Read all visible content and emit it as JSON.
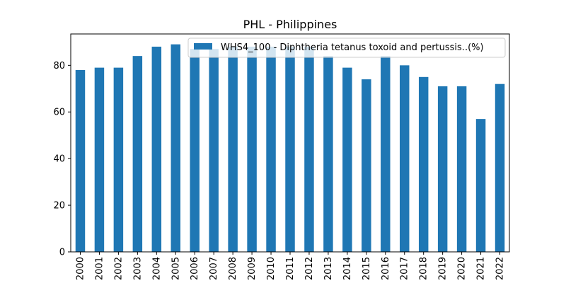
{
  "chart_data": {
    "type": "bar",
    "title": "PHL - Philippines",
    "xlabel": "",
    "ylabel": "",
    "categories": [
      "2000",
      "2001",
      "2002",
      "2003",
      "2004",
      "2005",
      "2006",
      "2007",
      "2008",
      "2009",
      "2010",
      "2011",
      "2012",
      "2013",
      "2014",
      "2015",
      "2016",
      "2017",
      "2018",
      "2019",
      "2020",
      "2021",
      "2022"
    ],
    "series": [
      {
        "name": "WHS4_100 - Diphtheria tetanus toxoid and pertussis..(%)",
        "values": [
          78,
          79,
          79,
          84,
          88,
          89,
          87,
          87,
          88,
          88,
          88,
          88,
          88,
          84,
          79,
          74,
          84,
          80,
          75,
          71,
          71,
          57,
          72
        ],
        "color": "#1f77b4"
      }
    ],
    "ylim": [
      0,
      93.45
    ],
    "yticks": [
      0,
      20,
      40,
      60,
      80
    ],
    "grid": false,
    "legend_position": "top-right"
  }
}
